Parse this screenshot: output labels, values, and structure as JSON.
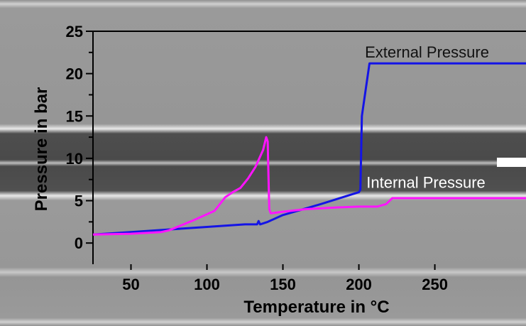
{
  "chart_data": {
    "type": "line",
    "xlabel": "Temperature in °C",
    "ylabel": "Pressure in bar",
    "xlim": [
      25,
      310
    ],
    "ylim": [
      -2.5,
      25
    ],
    "x_ticks": [
      50,
      100,
      150,
      200,
      250
    ],
    "y_ticks": [
      0,
      5,
      10,
      15,
      20,
      25
    ],
    "grid": false,
    "series": [
      {
        "name": "External Pressure",
        "color": "#1414e6",
        "x": [
          25,
          50,
          75,
          100,
          125,
          133,
          134,
          135,
          140,
          150,
          175,
          200,
          201,
          202,
          207,
          230,
          260,
          310
        ],
        "y": [
          1.0,
          1.3,
          1.6,
          1.9,
          2.2,
          2.2,
          2.6,
          2.2,
          2.5,
          3.3,
          4.6,
          6.0,
          6.3,
          15.0,
          21.2,
          21.2,
          21.2,
          21.2
        ]
      },
      {
        "name": "Internal Pressure",
        "color": "#ff14ff",
        "x": [
          25,
          50,
          70,
          75,
          90,
          105,
          112,
          117,
          122,
          127,
          132,
          137,
          139,
          140,
          141,
          142,
          150,
          165,
          185,
          200,
          212,
          218,
          222,
          250,
          280,
          310
        ],
        "y": [
          1.0,
          1.1,
          1.3,
          1.5,
          2.6,
          3.8,
          5.4,
          6.0,
          6.5,
          7.6,
          9.0,
          11.0,
          12.5,
          12.0,
          4.0,
          3.5,
          3.7,
          4.0,
          4.2,
          4.3,
          4.3,
          4.6,
          5.3,
          5.3,
          5.3,
          5.3
        ]
      }
    ],
    "annotations": [
      {
        "text": "External Pressure",
        "x": 204,
        "y": 21.9
      },
      {
        "text": "Internal Pressure",
        "x": 205,
        "y": 6.5
      }
    ]
  }
}
